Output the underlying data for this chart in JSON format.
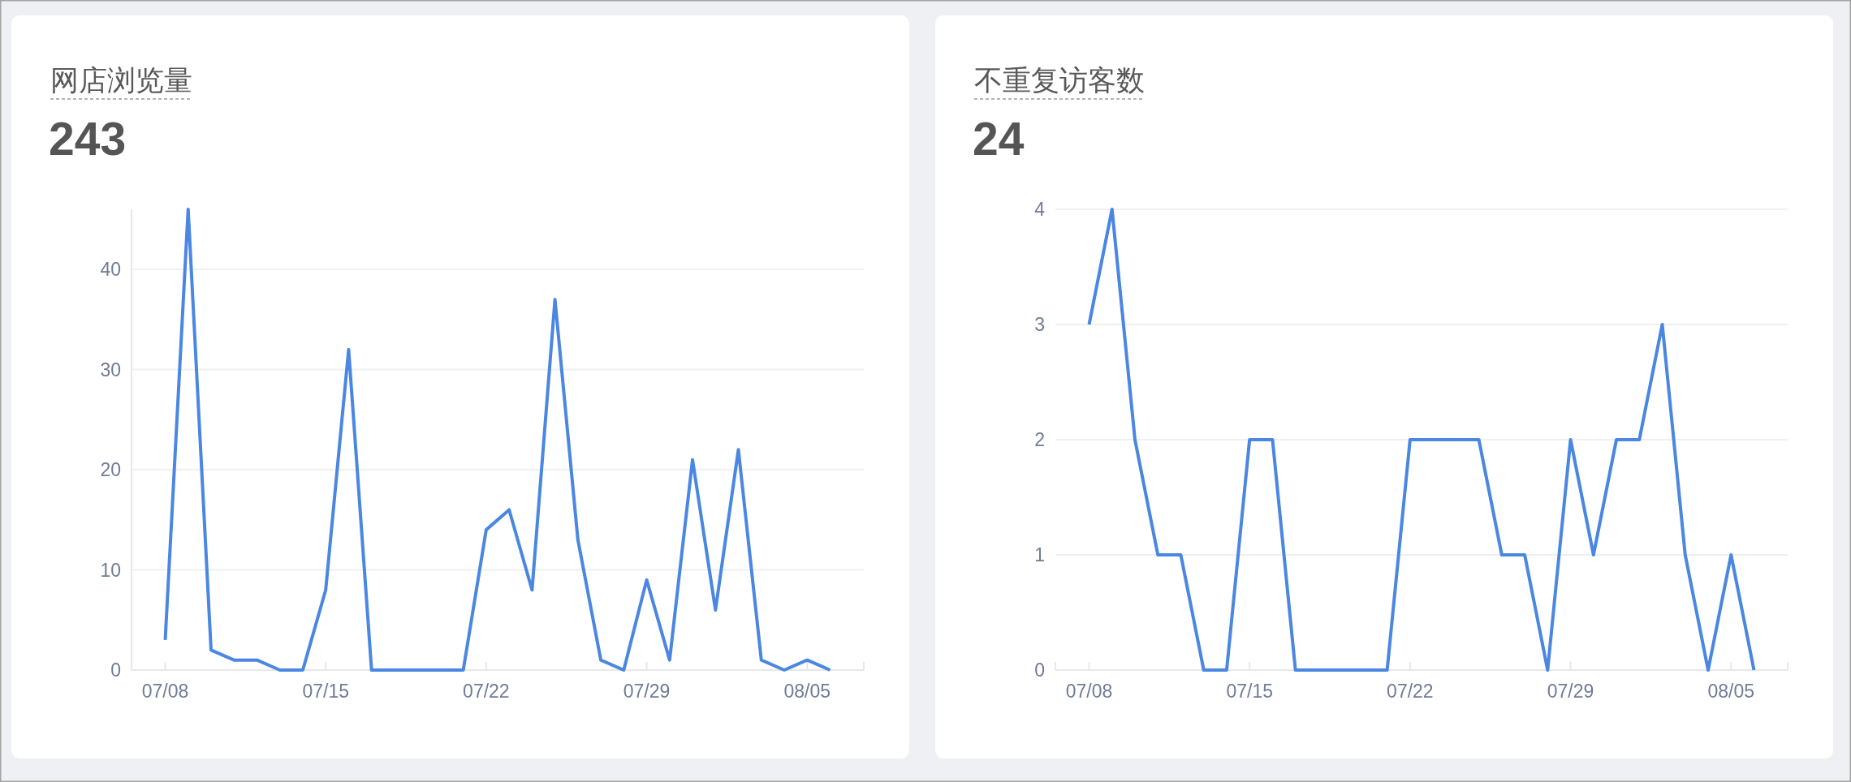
{
  "chart_data": [
    {
      "type": "line",
      "title": "网店浏览量",
      "subtitle": "243",
      "categories": [
        "07/08",
        null,
        null,
        null,
        null,
        null,
        null,
        "07/15",
        null,
        null,
        null,
        null,
        null,
        null,
        "07/22",
        null,
        null,
        null,
        null,
        null,
        null,
        "07/29",
        null,
        null,
        null,
        null,
        null,
        null,
        "08/05",
        null
      ],
      "series": [
        {
          "color": "#4a87e2",
          "values": [
            3,
            46,
            2,
            1,
            1,
            0,
            0,
            8,
            32,
            0,
            0,
            0,
            0,
            0,
            14,
            16,
            8,
            37,
            13,
            1,
            0,
            9,
            1,
            21,
            6,
            22,
            1,
            0,
            1,
            0
          ]
        }
      ],
      "ylim": [
        0,
        46
      ],
      "yticks": [
        0,
        10,
        20,
        30,
        40
      ],
      "grid": "y",
      "line_style": "solid"
    },
    {
      "type": "line",
      "title": "不重复访客数",
      "subtitle": "24",
      "categories": [
        "07/08",
        null,
        null,
        null,
        null,
        null,
        null,
        "07/15",
        null,
        null,
        null,
        null,
        null,
        null,
        "07/22",
        null,
        null,
        null,
        null,
        null,
        null,
        "07/29",
        null,
        null,
        null,
        null,
        null,
        null,
        "08/05",
        null
      ],
      "series": [
        {
          "color": "#4a87e2",
          "values": [
            3,
            4,
            2,
            1,
            1,
            0,
            0,
            2,
            2,
            0,
            0,
            0,
            0,
            0,
            2,
            2,
            2,
            2,
            1,
            1,
            0,
            2,
            1,
            2,
            2,
            3,
            1,
            0,
            1,
            0
          ]
        }
      ],
      "ylim": [
        0,
        4
      ],
      "yticks": [
        0,
        1,
        2,
        3,
        4
      ],
      "grid": "y",
      "line_style": "solid"
    }
  ]
}
